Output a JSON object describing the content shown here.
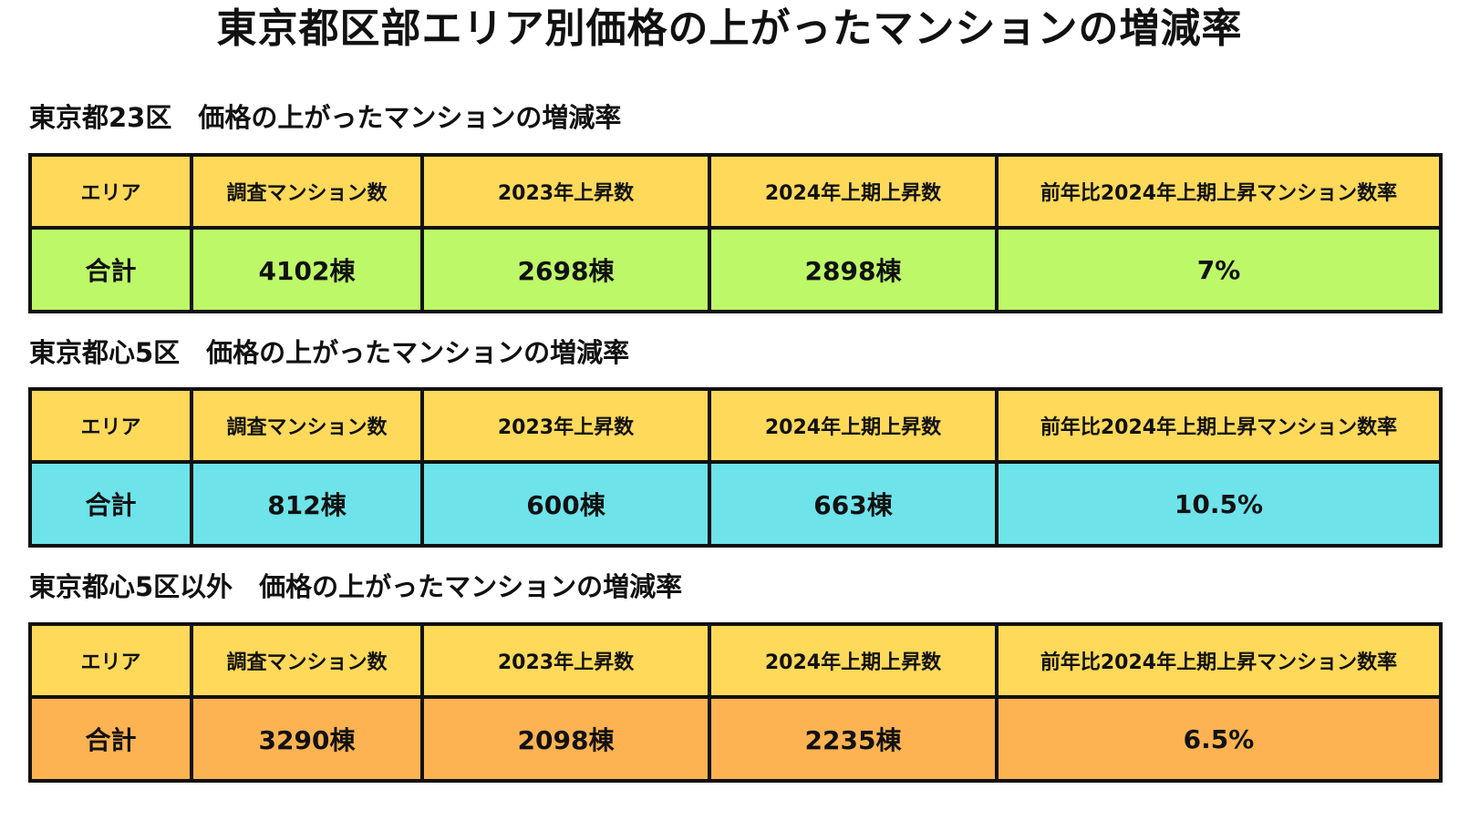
{
  "title": "東京都区部エリア別価格の上がったマンションの増減率",
  "colors": {
    "header_fill": "#fed95a",
    "border": "#111111",
    "text": "#111111"
  },
  "chart_data": [
    {
      "type": "table",
      "title": "東京都23区　価格の上がったマンションの増減率",
      "columns": [
        "エリア",
        "調査マンション数",
        "2023年上昇数",
        "2024年上期上昇数",
        "前年比2024年上期上昇マンション数率"
      ],
      "rows": [
        [
          "合計",
          "4102棟",
          "2698棟",
          "2898棟",
          "7%"
        ]
      ],
      "row_color": "#bdf868"
    },
    {
      "type": "table",
      "title": "東京都心5区　価格の上がったマンションの増減率",
      "columns": [
        "エリア",
        "調査マンション数",
        "2023年上昇数",
        "2024年上期上昇数",
        "前年比2024年上期上昇マンション数率"
      ],
      "rows": [
        [
          "合計",
          "812棟",
          "600棟",
          "663棟",
          "10.5%"
        ]
      ],
      "row_color": "#6ee3ea"
    },
    {
      "type": "table",
      "title": "東京都心5区以外　価格の上がったマンションの増減率",
      "columns": [
        "エリア",
        "調査マンション数",
        "2023年上昇数",
        "2024年上期上昇数",
        "前年比2024年上期上昇マンション数率"
      ],
      "rows": [
        [
          "合計",
          "3290棟",
          "2098棟",
          "2235棟",
          "6.5%"
        ]
      ],
      "row_color": "#fdb352"
    }
  ]
}
